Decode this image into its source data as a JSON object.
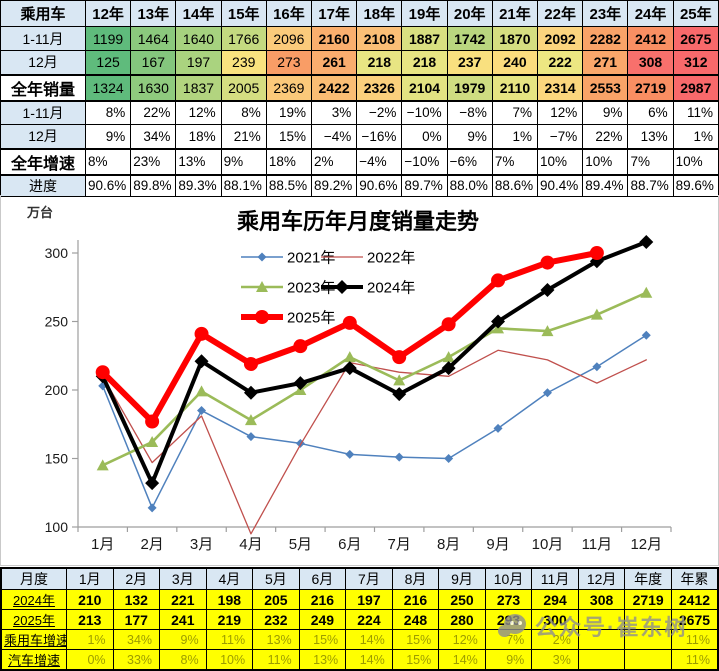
{
  "top_table": {
    "header": [
      "乘用车",
      "12年",
      "13年",
      "14年",
      "15年",
      "16年",
      "17年",
      "18年",
      "19年",
      "20年",
      "21年",
      "22年",
      "23年",
      "24年",
      "25年"
    ],
    "rows": [
      {
        "label": "1-11月",
        "type": "values",
        "bold_from": 5,
        "values": [
          "1199",
          "1464",
          "1640",
          "1766",
          "2096",
          "2160",
          "2108",
          "1887",
          "1742",
          "1870",
          "2092",
          "2282",
          "2412",
          "2675"
        ],
        "colors": [
          "#5FBB7C",
          "#8BC97D",
          "#A6D27F",
          "#C4DA80",
          "#FBCB7B",
          "#FAAF6E",
          "#FBBF76",
          "#D9E081",
          "#B9D67F",
          "#D5DE81",
          "#FBD47E",
          "#F9A368",
          "#F98F63",
          "#F8696B"
        ]
      },
      {
        "label": "12月",
        "type": "values",
        "bold_from": 5,
        "values": [
          "125",
          "167",
          "197",
          "239",
          "273",
          "261",
          "218",
          "218",
          "237",
          "240",
          "222",
          "271",
          "308",
          "312"
        ],
        "colors": [
          "#5FBB7C",
          "#84C67D",
          "#AAD37F",
          "#F9E37F",
          "#F99D66",
          "#FAAD6E",
          "#E8E583",
          "#E8E583",
          "#F9E07F",
          "#FBDC7E",
          "#EDE782",
          "#FAA76B",
          "#F8706C",
          "#F8696B"
        ]
      },
      {
        "label": "全年销量",
        "type": "values",
        "big": true,
        "hline": true,
        "bold_from": 5,
        "values": [
          "1324",
          "1630",
          "1837",
          "2005",
          "2369",
          "2422",
          "2326",
          "2104",
          "1979",
          "2110",
          "2314",
          "2553",
          "2719",
          "2987"
        ],
        "colors": [
          "#5FBB7C",
          "#8FCA7E",
          "#B2D47F",
          "#D5DE81",
          "#FBC97A",
          "#FABD74",
          "#FBD07C",
          "#E3E382",
          "#CFDD81",
          "#E6E482",
          "#FBD67D",
          "#F9A368",
          "#F98E62",
          "#F8696B"
        ]
      },
      {
        "label": "1-11月",
        "type": "pct-right",
        "values": [
          "8%",
          "22%",
          "12%",
          "8%",
          "19%",
          "3%",
          "−2%",
          "−10%",
          "−8%",
          "7%",
          "12%",
          "9%",
          "6%",
          "11%"
        ]
      },
      {
        "label": "12月",
        "type": "pct-right",
        "values": [
          "9%",
          "34%",
          "18%",
          "21%",
          "15%",
          "−4%",
          "−16%",
          "0%",
          "9%",
          "1%",
          "−7%",
          "22%",
          "13%",
          "1%"
        ]
      },
      {
        "label": "全年增速",
        "type": "pct-left",
        "big": true,
        "hline": true,
        "short": true,
        "values": [
          "8%",
          "23%",
          "13%",
          "9%",
          "18%",
          "2%",
          "−4%",
          "−10%",
          "−6%",
          "7%",
          "10%",
          "10%",
          "7%",
          "10%"
        ]
      },
      {
        "label": "进度",
        "type": "pct-left",
        "short": true,
        "values": [
          "90.6%",
          "89.8%",
          "89.3%",
          "88.1%",
          "88.5%",
          "89.2%",
          "90.6%",
          "89.7%",
          "88.0%",
          "88.6%",
          "90.4%",
          "89.4%",
          "88.7%",
          "89.6%"
        ]
      }
    ]
  },
  "chart_data": {
    "type": "line",
    "title": "乘用车历年月度销量走势",
    "ylabel": "万台",
    "x": [
      "1月",
      "2月",
      "3月",
      "4月",
      "5月",
      "6月",
      "7月",
      "8月",
      "9月",
      "10月",
      "11月",
      "12月"
    ],
    "ylim": [
      100,
      320
    ],
    "yticks": [
      100,
      150,
      200,
      250,
      300
    ],
    "grid": false,
    "legend_position": "inside-top",
    "series": [
      {
        "name": "2021年",
        "color": "#4F81BD",
        "width": 1.5,
        "marker": "diamond",
        "values": [
          203,
          114,
          185,
          166,
          161,
          153,
          151,
          150,
          172,
          198,
          217,
          240
        ]
      },
      {
        "name": "2022年",
        "color": "#C0504D",
        "width": 1.3,
        "marker": "none",
        "values": [
          210,
          147,
          181,
          95,
          160,
          220,
          213,
          210,
          229,
          222,
          205,
          222
        ]
      },
      {
        "name": "2023年",
        "color": "#9BBB59",
        "width": 2.6,
        "marker": "triangle",
        "values": [
          145,
          162,
          199,
          178,
          200,
          224,
          207,
          224,
          245,
          243,
          255,
          271
        ]
      },
      {
        "name": "2024年",
        "color": "#000000",
        "width": 4,
        "marker": "diamond",
        "values": [
          210,
          132,
          221,
          198,
          205,
          216,
          197,
          216,
          250,
          273,
          294,
          308
        ]
      },
      {
        "name": "2025年",
        "color": "#FF0000",
        "width": 6,
        "marker": "circle",
        "values": [
          213,
          177,
          241,
          219,
          232,
          249,
          224,
          248,
          280,
          293,
          300
        ]
      }
    ]
  },
  "bottom_table": {
    "header": [
      "月度",
      "1月",
      "2月",
      "3月",
      "4月",
      "5月",
      "6月",
      "7月",
      "8月",
      "9月",
      "10月",
      "11月",
      "12月",
      "年度",
      "年累"
    ],
    "rows": [
      {
        "label": "2024年",
        "type": "values",
        "values": [
          "210",
          "132",
          "221",
          "198",
          "205",
          "216",
          "197",
          "216",
          "250",
          "273",
          "294",
          "308",
          "2719",
          "2412"
        ]
      },
      {
        "label": "2025年",
        "type": "values",
        "values": [
          "213",
          "177",
          "241",
          "219",
          "232",
          "249",
          "224",
          "248",
          "280",
          "293",
          "300",
          "",
          "",
          "2675"
        ]
      },
      {
        "label": "乘用车增速",
        "type": "pct",
        "values": [
          "1%",
          "34%",
          "9%",
          "11%",
          "13%",
          "15%",
          "14%",
          "15%",
          "12%",
          "7%",
          "2%",
          "",
          "",
          "11%"
        ]
      },
      {
        "label": "汽车增速",
        "type": "pct",
        "values": [
          "0%",
          "33%",
          "8%",
          "10%",
          "11%",
          "13%",
          "14%",
          "15%",
          "14%",
          "9%",
          "3%",
          "",
          "",
          "11%"
        ]
      }
    ]
  },
  "watermark": {
    "text": "公众号·崔东树"
  }
}
